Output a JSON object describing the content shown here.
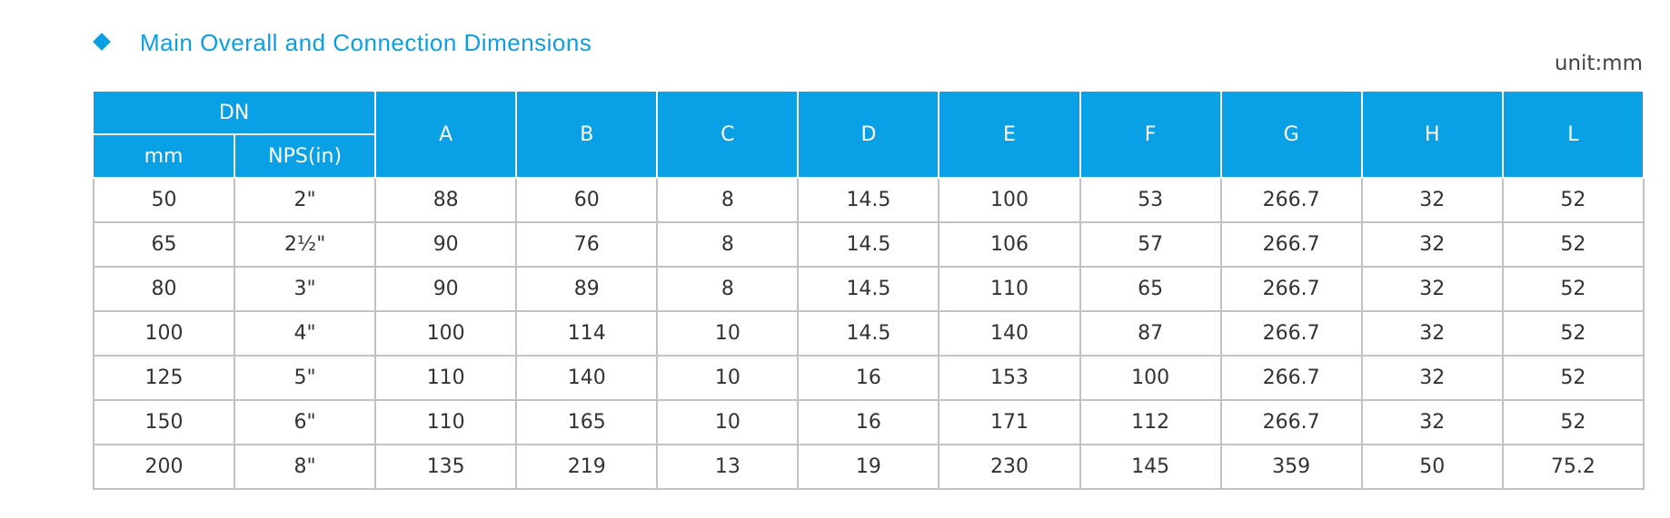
{
  "title": "Main Overall and Connection Dimensions",
  "unit": "unit:mm",
  "table": {
    "group_header": "DN",
    "sub_headers": [
      "mm",
      "NPS(in)"
    ],
    "columns": [
      "A",
      "B",
      "C",
      "D",
      "E",
      "F",
      "G",
      "H",
      "L"
    ],
    "rows": [
      [
        "50",
        "2\"",
        "88",
        "60",
        "8",
        "14.5",
        "100",
        "53",
        "266.7",
        "32",
        "52"
      ],
      [
        "65",
        "2½\"",
        "90",
        "76",
        "8",
        "14.5",
        "106",
        "57",
        "266.7",
        "32",
        "52"
      ],
      [
        "80",
        "3\"",
        "90",
        "89",
        "8",
        "14.5",
        "110",
        "65",
        "266.7",
        "32",
        "52"
      ],
      [
        "100",
        "4\"",
        "100",
        "114",
        "10",
        "14.5",
        "140",
        "87",
        "266.7",
        "32",
        "52"
      ],
      [
        "125",
        "5\"",
        "110",
        "140",
        "10",
        "16",
        "153",
        "100",
        "266.7",
        "32",
        "52"
      ],
      [
        "150",
        "6\"",
        "110",
        "165",
        "10",
        "16",
        "171",
        "112",
        "266.7",
        "32",
        "52"
      ],
      [
        "200",
        "8\"",
        "135",
        "219",
        "13",
        "19",
        "230",
        "145",
        "359",
        "50",
        "75.2"
      ]
    ]
  }
}
